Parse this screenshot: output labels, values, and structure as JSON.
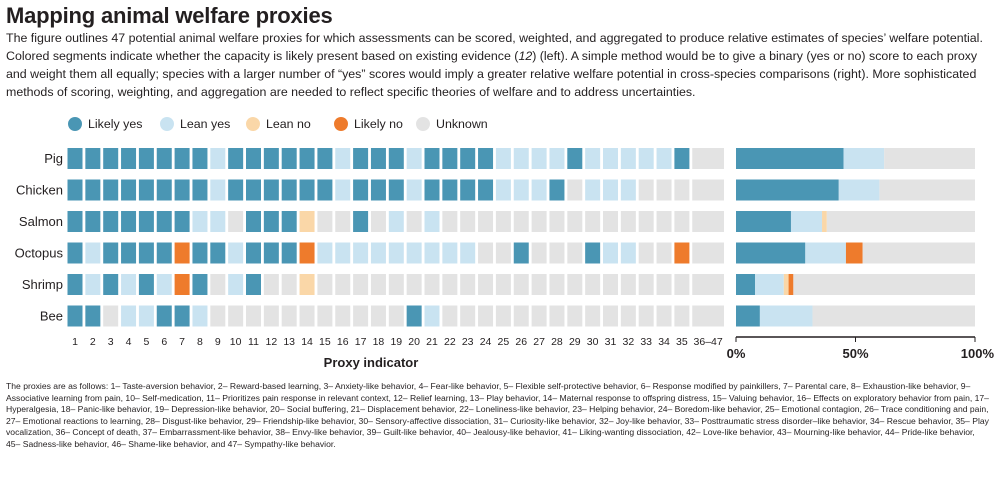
{
  "title": "Mapping animal welfare proxies",
  "intro": {
    "before_ref": "The figure outlines 47 potential animal welfare proxies for which assessments can be scored, weighted, and aggregated to produce relative estimates of species’ welfare potential. Colored segments indicate whether the capacity is likely present based on existing evidence (",
    "ref": "12",
    "after_ref": ") (left). A simple method would be to give a binary (yes or no) score to each proxy and weight them all equally; species with a larger number of “yes” scores would imply a greater relative welfare potential in cross-species comparisons (right). More sophisticated methods of scoring, weighting, and aggregation are needed to reflect specific theories of welfare and to address uncertainties."
  },
  "legend": [
    {
      "key": "likely_yes",
      "label": "Likely yes",
      "color": "#4a96b4"
    },
    {
      "key": "lean_yes",
      "label": "Lean yes",
      "color": "#c9e3f1"
    },
    {
      "key": "lean_no",
      "label": "Lean no",
      "color": "#fad7a8"
    },
    {
      "key": "likely_no",
      "label": "Likely no",
      "color": "#ee7b2c"
    },
    {
      "key": "unknown",
      "label": "Unknown",
      "color": "#e3e3e3"
    }
  ],
  "chart_data": [
    {
      "type": "heatmap",
      "title": "",
      "xlabel": "Proxy indicator",
      "x_tick_labels": [
        "1",
        "2",
        "3",
        "4",
        "5",
        "6",
        "7",
        "8",
        "9",
        "10",
        "11",
        "12",
        "13",
        "14",
        "15",
        "16",
        "17",
        "18",
        "19",
        "20",
        "21",
        "22",
        "23",
        "24",
        "25",
        "26",
        "27",
        "28",
        "29",
        "30",
        "31",
        "32",
        "33",
        "34",
        "35",
        "36–47"
      ],
      "value_codes": {
        "Y": "Likely yes",
        "L": "Lean yes",
        "N": "Lean no",
        "X": "Likely no",
        "U": "Unknown"
      },
      "rows": [
        {
          "species": "Pig",
          "values": [
            "Y",
            "Y",
            "Y",
            "Y",
            "Y",
            "Y",
            "Y",
            "Y",
            "L",
            "Y",
            "Y",
            "Y",
            "Y",
            "Y",
            "Y",
            "L",
            "Y",
            "Y",
            "Y",
            "L",
            "Y",
            "Y",
            "Y",
            "Y",
            "L",
            "L",
            "L",
            "L",
            "Y",
            "L",
            "L",
            "L",
            "L",
            "L",
            "Y",
            "U"
          ]
        },
        {
          "species": "Chicken",
          "values": [
            "Y",
            "Y",
            "Y",
            "Y",
            "Y",
            "Y",
            "Y",
            "Y",
            "L",
            "Y",
            "Y",
            "Y",
            "Y",
            "Y",
            "Y",
            "L",
            "Y",
            "Y",
            "Y",
            "L",
            "Y",
            "Y",
            "Y",
            "Y",
            "L",
            "L",
            "L",
            "Y",
            "U",
            "L",
            "L",
            "L",
            "U",
            "U",
            "U",
            "U"
          ]
        },
        {
          "species": "Salmon",
          "values": [
            "Y",
            "Y",
            "Y",
            "Y",
            "Y",
            "Y",
            "Y",
            "L",
            "L",
            "U",
            "Y",
            "Y",
            "Y",
            "N",
            "U",
            "U",
            "Y",
            "U",
            "L",
            "U",
            "L",
            "U",
            "U",
            "U",
            "U",
            "U",
            "U",
            "U",
            "U",
            "U",
            "U",
            "U",
            "U",
            "U",
            "U",
            "U"
          ]
        },
        {
          "species": "Octopus",
          "values": [
            "Y",
            "L",
            "Y",
            "Y",
            "Y",
            "Y",
            "X",
            "Y",
            "Y",
            "L",
            "Y",
            "Y",
            "Y",
            "X",
            "L",
            "L",
            "L",
            "L",
            "L",
            "L",
            "L",
            "L",
            "L",
            "U",
            "U",
            "Y",
            "U",
            "U",
            "U",
            "Y",
            "L",
            "L",
            "U",
            "U",
            "X",
            "U"
          ]
        },
        {
          "species": "Shrimp",
          "values": [
            "Y",
            "L",
            "Y",
            "L",
            "Y",
            "L",
            "X",
            "Y",
            "U",
            "L",
            "Y",
            "U",
            "U",
            "N",
            "U",
            "U",
            "U",
            "U",
            "U",
            "U",
            "U",
            "U",
            "U",
            "U",
            "U",
            "U",
            "U",
            "U",
            "U",
            "U",
            "U",
            "U",
            "U",
            "U",
            "U",
            "U"
          ]
        },
        {
          "species": "Bee",
          "values": [
            "Y",
            "Y",
            "U",
            "L",
            "L",
            "Y",
            "Y",
            "L",
            "U",
            "U",
            "U",
            "U",
            "U",
            "U",
            "U",
            "U",
            "U",
            "U",
            "U",
            "Y",
            "L",
            "U",
            "U",
            "U",
            "U",
            "U",
            "U",
            "U",
            "U",
            "U",
            "U",
            "U",
            "U",
            "U",
            "U",
            "U"
          ]
        }
      ]
    },
    {
      "type": "bar",
      "orientation": "horizontal",
      "stacked": true,
      "categories": [
        "Pig",
        "Chicken",
        "Salmon",
        "Octopus",
        "Shrimp",
        "Bee"
      ],
      "series": [
        {
          "name": "Likely yes",
          "values": [
            45,
            43,
            23,
            29,
            8,
            10
          ]
        },
        {
          "name": "Lean yes",
          "values": [
            17,
            17,
            13,
            17,
            12,
            22
          ]
        },
        {
          "name": "Lean no",
          "values": [
            0,
            0,
            2,
            0,
            2,
            0
          ]
        },
        {
          "name": "Likely no",
          "values": [
            0,
            0,
            0,
            7,
            2,
            0
          ]
        },
        {
          "name": "Unknown",
          "values": [
            38,
            40,
            62,
            47,
            76,
            68
          ]
        }
      ],
      "x_tick_labels": [
        "0%",
        "50%",
        "100%"
      ],
      "xlim": [
        0,
        100
      ],
      "xlabel": "",
      "ylabel": ""
    }
  ],
  "footnote": "The proxies are as follows: 1– Taste-aversion behavior, 2– Reward-based learning, 3– Anxiety-like behavior, 4– Fear-like behavior, 5– Flexible self-protective behavior, 6– Response modified by painkillers, 7– Parental care, 8– Exhaustion-like behavior, 9– Associative learning from pain, 10– Self-medication, 11– Prioritizes pain response in relevant context, 12– Relief learning, 13– Play behavior, 14– Maternal response to offspring distress, 15– Valuing behavior, 16– Effects on exploratory behavior from pain, 17– Hyperalgesia, 18– Panic-like behavior, 19– Depression-like behavior, 20– Social buffering, 21– Displacement behavior, 22– Loneliness-like behavior, 23– Helping behavior, 24– Boredom-like behavior, 25– Emotional contagion, 26– Trace conditioning and pain, 27– Emotional reactions to learning, 28– Disgust-like behavior, 29– Friendship-like behavior, 30– Sensory-affective dissociation, 31– Curiosity-like behavior, 32– Joy-like behavior, 33– Posttraumatic stress disorder–like behavior, 34– Rescue behavior, 35– Play vocalization, 36– Concept of death, 37– Embarrassment-like behavior, 38– Envy-like behavior, 39– Guilt-like behavior, 40– Jealousy-like behavior, 41– Liking-wanting dissociation, 42– Love-like behavior, 43– Mourning-like behavior, 44– Pride-like behavior, 45– Sadness-like behavior, 46– Shame-like behavior, and 47– Sympathy-like behavior."
}
